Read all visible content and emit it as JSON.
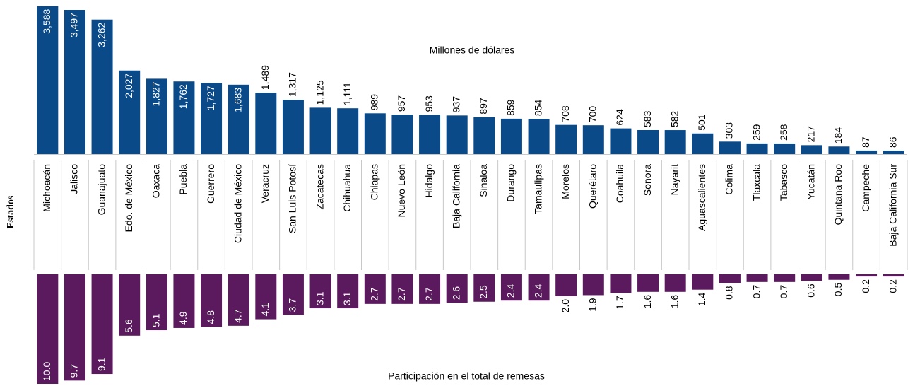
{
  "chart_data": {
    "type": "bar",
    "y_axis_label": "Estados",
    "categories": [
      "Michoacán",
      "Jalisco",
      "Guanajuato",
      "Edo. de México",
      "Oaxaca",
      "Puebla",
      "Guerrero",
      "Ciudad de México",
      "Veracruz",
      "San Luis Potosí",
      "Zacatecas",
      "Chihuahua",
      "Chiapas",
      "Nuevo León",
      "Hidalgo",
      "Baja California",
      "Sinaloa",
      "Durango",
      "Tamaulipas",
      "Morelos",
      "Querétaro",
      "Coahuila",
      "Sonora",
      "Nayarit",
      "Aguascalientes",
      "Colima",
      "Tlaxcala",
      "Tabasco",
      "Yucatán",
      "Quintana Roo",
      "Campeche",
      "Baja California Sur"
    ],
    "series": [
      {
        "name": "Millones de dólares",
        "color": "#0a4a88",
        "values": [
          3588,
          3497,
          3262,
          2027,
          1827,
          1762,
          1727,
          1683,
          1489,
          1317,
          1125,
          1111,
          989,
          957,
          953,
          937,
          897,
          859,
          854,
          708,
          700,
          624,
          583,
          582,
          501,
          303,
          259,
          258,
          217,
          184,
          87,
          86
        ],
        "value_labels": [
          "3,588",
          "3,497",
          "3,262",
          "2,027",
          "1,827",
          "1,762",
          "1,727",
          "1,683",
          "1,489",
          "1,317",
          "1,125",
          "1,111",
          "989",
          "957",
          "953",
          "937",
          "897",
          "859",
          "854",
          "708",
          "700",
          "624",
          "583",
          "582",
          "501",
          "303",
          "259",
          "258",
          "217",
          "184",
          "87",
          "86"
        ]
      },
      {
        "name": "Participación en el total de remesas",
        "color": "#5b1a5e",
        "axis": "y2",
        "values": [
          10.0,
          9.7,
          9.1,
          5.6,
          5.1,
          4.9,
          4.8,
          4.7,
          4.1,
          3.7,
          3.1,
          3.1,
          2.7,
          2.7,
          2.7,
          2.6,
          2.5,
          2.4,
          2.4,
          2.0,
          1.9,
          1.7,
          1.6,
          1.6,
          1.4,
          0.8,
          0.7,
          0.7,
          0.6,
          0.5,
          0.2,
          0.2
        ],
        "value_labels": [
          "10.0",
          "9.7",
          "9.1",
          "5.6",
          "5.1",
          "4.9",
          "4.8",
          "4.7",
          "4.1",
          "3.7",
          "3.1",
          "3.1",
          "2.7",
          "2.7",
          "2.7",
          "2.6",
          "2.5",
          "2.4",
          "2.4",
          "2.0",
          "1.9",
          "1.7",
          "1.6",
          "1.6",
          "1.4",
          "0.8",
          "0.7",
          "0.7",
          "0.6",
          "0.5",
          "0.2",
          "0.2"
        ]
      }
    ],
    "ylim": [
      0,
      3600
    ],
    "y2lim": [
      0,
      10
    ]
  }
}
